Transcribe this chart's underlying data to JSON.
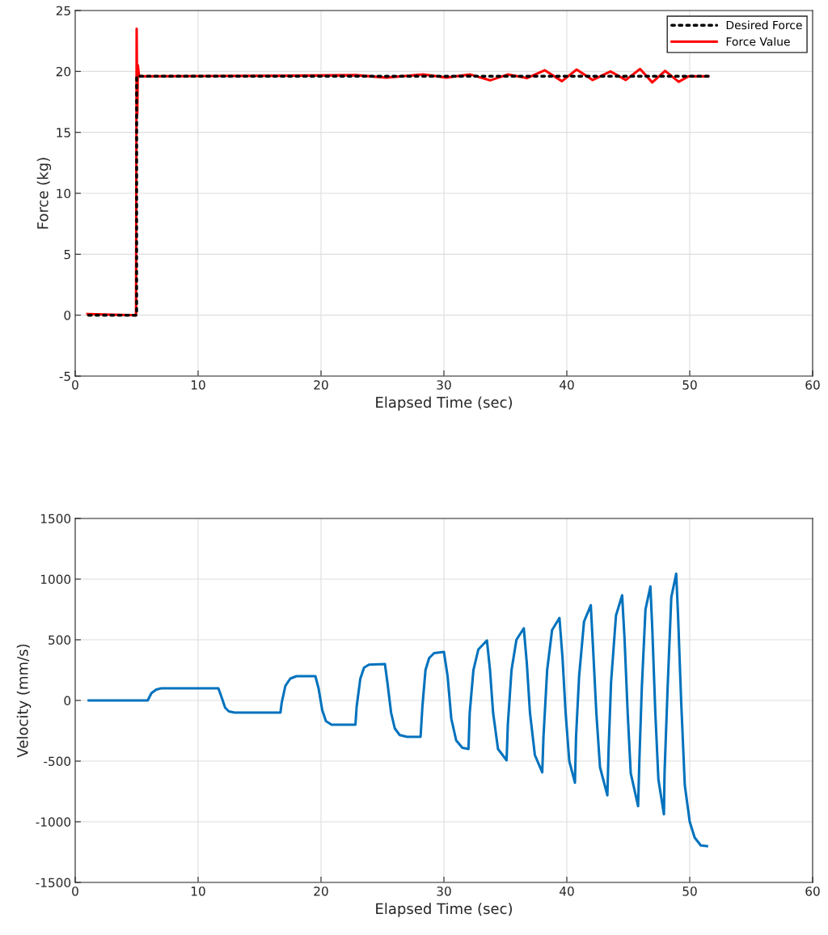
{
  "chart_data": [
    {
      "type": "line",
      "xlabel": "Elapsed Time (sec)",
      "ylabel": "Force (kg)",
      "xlim": [
        0,
        60
      ],
      "xticks": [
        0,
        10,
        20,
        30,
        40,
        50,
        60
      ],
      "ylim": [
        -5,
        25
      ],
      "yticks": [
        -5,
        0,
        5,
        10,
        15,
        20,
        25
      ],
      "grid": true,
      "legend": "top right",
      "series": [
        {
          "name": "Desired Force",
          "color": "#000000",
          "line_style": "dotted",
          "x": [
            1.0,
            5.0,
            5.0,
            51.5
          ],
          "values": [
            0,
            0,
            19.6,
            19.6
          ]
        },
        {
          "name": "Force Value",
          "color": "#ff0000",
          "line_style": "solid",
          "x": [
            1.0,
            4.95,
            5.0,
            5.05,
            5.1,
            5.2,
            17.0,
            22.8,
            25.3,
            28.3,
            30.2,
            32.15,
            33.75,
            35.2,
            36.75,
            38.2,
            39.6,
            40.8,
            42.1,
            43.55,
            44.8,
            45.96,
            46.95,
            48.0,
            49.1,
            49.9,
            51.5
          ],
          "values": [
            0.1,
            0,
            23.5,
            16.5,
            20.5,
            19.6,
            19.65,
            19.7,
            19.5,
            19.75,
            19.5,
            19.75,
            19.27,
            19.75,
            19.45,
            20.1,
            19.2,
            20.15,
            19.3,
            20.0,
            19.3,
            20.2,
            19.1,
            20.05,
            19.15,
            19.6,
            19.6
          ]
        }
      ]
    },
    {
      "type": "line",
      "xlabel": "Elapsed Time (sec)",
      "ylabel": "Velocity (mm/s)",
      "xlim": [
        0,
        60
      ],
      "xticks": [
        0,
        10,
        20,
        30,
        40,
        50,
        60
      ],
      "ylim": [
        -1500,
        1500
      ],
      "yticks": [
        -1500,
        -1000,
        -500,
        0,
        500,
        1000,
        1500
      ],
      "grid": true,
      "series": [
        {
          "color": "#0072bd",
          "line_style": "solid",
          "x": [
            1.1,
            5.9,
            6.2,
            6.6,
            7.0,
            11.65,
            11.9,
            12.2,
            12.5,
            12.96,
            16.7,
            16.8,
            17.1,
            17.5,
            18.0,
            19.54,
            19.8,
            20.1,
            20.4,
            20.86,
            22.8,
            22.9,
            23.2,
            23.5,
            23.9,
            25.2,
            25.4,
            25.7,
            26.0,
            26.4,
            27.0,
            28.1,
            28.25,
            28.5,
            28.8,
            29.2,
            30.0,
            30.3,
            30.6,
            31.0,
            31.5,
            32.0,
            32.1,
            32.4,
            32.8,
            33.5,
            33.75,
            34.0,
            34.4,
            35.1,
            35.2,
            35.5,
            35.9,
            36.5,
            36.75,
            37.0,
            37.4,
            38.0,
            38.1,
            38.4,
            38.8,
            39.4,
            39.65,
            39.9,
            40.2,
            40.66,
            40.75,
            41.0,
            41.4,
            41.95,
            42.15,
            42.4,
            42.7,
            43.3,
            43.4,
            43.6,
            44.0,
            44.5,
            44.7,
            44.95,
            45.2,
            45.8,
            45.9,
            46.1,
            46.4,
            46.8,
            46.95,
            47.2,
            47.45,
            47.9,
            47.95,
            48.2,
            48.5,
            48.9,
            49.05,
            49.3,
            49.6,
            50.0,
            50.4,
            50.9,
            51.4
          ],
          "values": [
            0,
            0,
            60,
            90,
            100,
            100,
            30,
            -60,
            -90,
            -100,
            -100,
            -20,
            120,
            180,
            200,
            200,
            100,
            -80,
            -170,
            -200,
            -200,
            -50,
            180,
            270,
            295,
            300,
            150,
            -100,
            -230,
            -285,
            -300,
            -300,
            -50,
            250,
            350,
            390,
            400,
            200,
            -150,
            -330,
            -390,
            -400,
            -100,
            250,
            420,
            495,
            250,
            -100,
            -400,
            -493,
            -200,
            250,
            500,
            595,
            300,
            -100,
            -450,
            -593,
            -300,
            250,
            580,
            680,
            350,
            -100,
            -500,
            -678,
            -300,
            200,
            650,
            785,
            400,
            -100,
            -550,
            -782,
            -400,
            150,
            700,
            867,
            500,
            -100,
            -600,
            -871,
            -500,
            100,
            750,
            940,
            600,
            -100,
            -650,
            -938,
            -600,
            100,
            850,
            1045,
            700,
            0,
            -700,
            -1000,
            -1130,
            -1195,
            -1200
          ]
        }
      ]
    }
  ]
}
